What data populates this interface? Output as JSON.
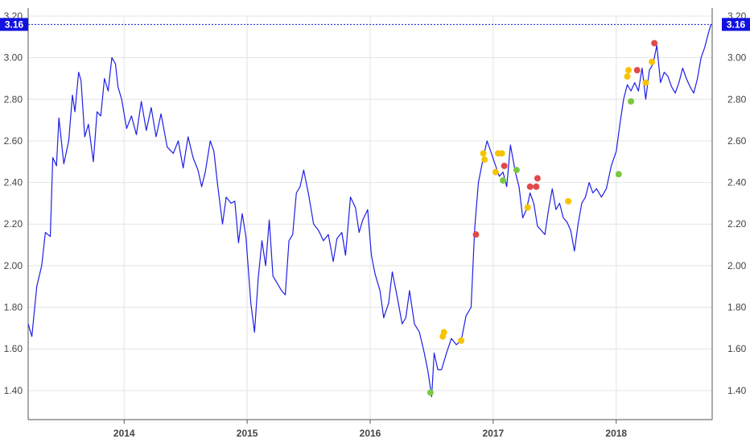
{
  "chart_data": {
    "type": "line",
    "title": "",
    "xlabel": "",
    "ylabel": "",
    "xlim": [
      2013.22,
      2018.78
    ],
    "ylim": [
      1.26,
      3.2
    ],
    "grid": true,
    "x_ticks": [
      {
        "value": 2014,
        "label": "2014"
      },
      {
        "value": 2015,
        "label": "2015"
      },
      {
        "value": 2016,
        "label": "2016"
      },
      {
        "value": 2017,
        "label": "2017"
      },
      {
        "value": 2018,
        "label": "2018"
      }
    ],
    "y_ticks": [
      {
        "value": 1.4,
        "label": "1.40"
      },
      {
        "value": 1.6,
        "label": "1.60"
      },
      {
        "value": 1.8,
        "label": "1.80"
      },
      {
        "value": 2.0,
        "label": "2.00"
      },
      {
        "value": 2.2,
        "label": "2.20"
      },
      {
        "value": 2.4,
        "label": "2.40"
      },
      {
        "value": 2.6,
        "label": "2.60"
      },
      {
        "value": 2.8,
        "label": "2.80"
      },
      {
        "value": 3.0,
        "label": "3.00"
      },
      {
        "value": 3.2,
        "label": "3.20"
      }
    ],
    "last_value": {
      "value": 3.16,
      "label": "3.16"
    },
    "colors": {
      "line": "#1f1fe6",
      "last_value_badge": "#1212e0",
      "grid": "#e4e4e4",
      "axis": "#555555",
      "green": "#7ac943",
      "yellow": "#f5c400",
      "red": "#e04a4a"
    },
    "series": [
      {
        "values": [
          [
            2013.22,
            1.72
          ],
          [
            2013.25,
            1.66
          ],
          [
            2013.29,
            1.9
          ],
          [
            2013.33,
            2.0
          ],
          [
            2013.36,
            2.16
          ],
          [
            2013.4,
            2.14
          ],
          [
            2013.42,
            2.52
          ],
          [
            2013.45,
            2.48
          ],
          [
            2013.47,
            2.71
          ],
          [
            2013.51,
            2.49
          ],
          [
            2013.55,
            2.6
          ],
          [
            2013.58,
            2.82
          ],
          [
            2013.6,
            2.74
          ],
          [
            2013.63,
            2.93
          ],
          [
            2013.65,
            2.89
          ],
          [
            2013.68,
            2.62
          ],
          [
            2013.71,
            2.68
          ],
          [
            2013.75,
            2.5
          ],
          [
            2013.78,
            2.74
          ],
          [
            2013.81,
            2.72
          ],
          [
            2013.84,
            2.9
          ],
          [
            2013.87,
            2.84
          ],
          [
            2013.9,
            3.0
          ],
          [
            2013.93,
            2.97
          ],
          [
            2013.95,
            2.86
          ],
          [
            2013.98,
            2.8
          ],
          [
            2014.02,
            2.66
          ],
          [
            2014.06,
            2.72
          ],
          [
            2014.1,
            2.63
          ],
          [
            2014.14,
            2.79
          ],
          [
            2014.18,
            2.65
          ],
          [
            2014.22,
            2.76
          ],
          [
            2014.26,
            2.62
          ],
          [
            2014.3,
            2.73
          ],
          [
            2014.35,
            2.57
          ],
          [
            2014.4,
            2.54
          ],
          [
            2014.44,
            2.6
          ],
          [
            2014.48,
            2.47
          ],
          [
            2014.52,
            2.62
          ],
          [
            2014.56,
            2.52
          ],
          [
            2014.6,
            2.46
          ],
          [
            2014.63,
            2.38
          ],
          [
            2014.66,
            2.45
          ],
          [
            2014.7,
            2.6
          ],
          [
            2014.73,
            2.55
          ],
          [
            2014.76,
            2.39
          ],
          [
            2014.8,
            2.2
          ],
          [
            2014.83,
            2.33
          ],
          [
            2014.87,
            2.3
          ],
          [
            2014.9,
            2.31
          ],
          [
            2014.93,
            2.11
          ],
          [
            2014.96,
            2.25
          ],
          [
            2014.99,
            2.14
          ],
          [
            2015.03,
            1.82
          ],
          [
            2015.06,
            1.68
          ],
          [
            2015.09,
            1.94
          ],
          [
            2015.12,
            2.12
          ],
          [
            2015.15,
            2.0
          ],
          [
            2015.18,
            2.22
          ],
          [
            2015.21,
            1.95
          ],
          [
            2015.25,
            1.91
          ],
          [
            2015.28,
            1.88
          ],
          [
            2015.31,
            1.86
          ],
          [
            2015.34,
            2.12
          ],
          [
            2015.37,
            2.15
          ],
          [
            2015.4,
            2.35
          ],
          [
            2015.43,
            2.38
          ],
          [
            2015.46,
            2.46
          ],
          [
            2015.5,
            2.34
          ],
          [
            2015.54,
            2.2
          ],
          [
            2015.58,
            2.17
          ],
          [
            2015.62,
            2.12
          ],
          [
            2015.66,
            2.15
          ],
          [
            2015.7,
            2.02
          ],
          [
            2015.73,
            2.13
          ],
          [
            2015.77,
            2.16
          ],
          [
            2015.8,
            2.05
          ],
          [
            2015.84,
            2.33
          ],
          [
            2015.88,
            2.28
          ],
          [
            2015.91,
            2.16
          ],
          [
            2015.94,
            2.22
          ],
          [
            2015.98,
            2.27
          ],
          [
            2016.01,
            2.05
          ],
          [
            2016.04,
            1.96
          ],
          [
            2016.08,
            1.88
          ],
          [
            2016.11,
            1.75
          ],
          [
            2016.15,
            1.82
          ],
          [
            2016.18,
            1.97
          ],
          [
            2016.22,
            1.85
          ],
          [
            2016.26,
            1.72
          ],
          [
            2016.29,
            1.75
          ],
          [
            2016.32,
            1.88
          ],
          [
            2016.36,
            1.72
          ],
          [
            2016.4,
            1.68
          ],
          [
            2016.44,
            1.58
          ],
          [
            2016.47,
            1.49
          ],
          [
            2016.5,
            1.37
          ],
          [
            2016.52,
            1.58
          ],
          [
            2016.55,
            1.5
          ],
          [
            2016.58,
            1.5
          ],
          [
            2016.62,
            1.58
          ],
          [
            2016.66,
            1.65
          ],
          [
            2016.7,
            1.62
          ],
          [
            2016.74,
            1.64
          ],
          [
            2016.78,
            1.76
          ],
          [
            2016.82,
            1.8
          ],
          [
            2016.85,
            2.18
          ],
          [
            2016.88,
            2.4
          ],
          [
            2016.92,
            2.52
          ],
          [
            2016.95,
            2.6
          ],
          [
            2016.98,
            2.55
          ],
          [
            2017.02,
            2.48
          ],
          [
            2017.05,
            2.43
          ],
          [
            2017.08,
            2.45
          ],
          [
            2017.11,
            2.38
          ],
          [
            2017.14,
            2.58
          ],
          [
            2017.18,
            2.45
          ],
          [
            2017.21,
            2.38
          ],
          [
            2017.24,
            2.23
          ],
          [
            2017.27,
            2.27
          ],
          [
            2017.3,
            2.35
          ],
          [
            2017.33,
            2.3
          ],
          [
            2017.36,
            2.19
          ],
          [
            2017.39,
            2.17
          ],
          [
            2017.42,
            2.15
          ],
          [
            2017.45,
            2.27
          ],
          [
            2017.48,
            2.37
          ],
          [
            2017.51,
            2.27
          ],
          [
            2017.54,
            2.3
          ],
          [
            2017.57,
            2.23
          ],
          [
            2017.6,
            2.21
          ],
          [
            2017.63,
            2.17
          ],
          [
            2017.66,
            2.07
          ],
          [
            2017.69,
            2.2
          ],
          [
            2017.72,
            2.3
          ],
          [
            2017.75,
            2.33
          ],
          [
            2017.78,
            2.4
          ],
          [
            2017.81,
            2.35
          ],
          [
            2017.84,
            2.37
          ],
          [
            2017.88,
            2.33
          ],
          [
            2017.92,
            2.37
          ],
          [
            2017.96,
            2.48
          ],
          [
            2018.0,
            2.55
          ],
          [
            2018.03,
            2.68
          ],
          [
            2018.06,
            2.8
          ],
          [
            2018.09,
            2.87
          ],
          [
            2018.12,
            2.84
          ],
          [
            2018.15,
            2.88
          ],
          [
            2018.18,
            2.84
          ],
          [
            2018.21,
            2.95
          ],
          [
            2018.24,
            2.8
          ],
          [
            2018.27,
            2.94
          ],
          [
            2018.3,
            2.97
          ],
          [
            2018.33,
            3.06
          ],
          [
            2018.36,
            2.88
          ],
          [
            2018.39,
            2.93
          ],
          [
            2018.42,
            2.91
          ],
          [
            2018.45,
            2.86
          ],
          [
            2018.48,
            2.83
          ],
          [
            2018.51,
            2.88
          ],
          [
            2018.54,
            2.95
          ],
          [
            2018.57,
            2.9
          ],
          [
            2018.6,
            2.86
          ],
          [
            2018.63,
            2.83
          ],
          [
            2018.66,
            2.9
          ],
          [
            2018.69,
            3.0
          ],
          [
            2018.72,
            3.05
          ],
          [
            2018.75,
            3.12
          ],
          [
            2018.77,
            3.16
          ]
        ]
      }
    ],
    "markers": [
      {
        "x": 2016.49,
        "y": 1.39,
        "color": "green"
      },
      {
        "x": 2016.59,
        "y": 1.66,
        "color": "yellow"
      },
      {
        "x": 2016.6,
        "y": 1.68,
        "color": "yellow"
      },
      {
        "x": 2016.74,
        "y": 1.64,
        "color": "yellow"
      },
      {
        "x": 2016.86,
        "y": 2.15,
        "color": "red"
      },
      {
        "x": 2016.92,
        "y": 2.54,
        "color": "yellow"
      },
      {
        "x": 2016.93,
        "y": 2.51,
        "color": "yellow"
      },
      {
        "x": 2017.02,
        "y": 2.45,
        "color": "yellow"
      },
      {
        "x": 2017.04,
        "y": 2.54,
        "color": "yellow"
      },
      {
        "x": 2017.07,
        "y": 2.54,
        "color": "yellow"
      },
      {
        "x": 2017.08,
        "y": 2.41,
        "color": "green"
      },
      {
        "x": 2017.09,
        "y": 2.48,
        "color": "red"
      },
      {
        "x": 2017.19,
        "y": 2.46,
        "color": "green"
      },
      {
        "x": 2017.28,
        "y": 2.28,
        "color": "yellow"
      },
      {
        "x": 2017.3,
        "y": 2.38,
        "color": "red"
      },
      {
        "x": 2017.35,
        "y": 2.38,
        "color": "red"
      },
      {
        "x": 2017.36,
        "y": 2.42,
        "color": "red"
      },
      {
        "x": 2017.61,
        "y": 2.31,
        "color": "yellow"
      },
      {
        "x": 2018.02,
        "y": 2.44,
        "color": "green"
      },
      {
        "x": 2018.09,
        "y": 2.91,
        "color": "yellow"
      },
      {
        "x": 2018.1,
        "y": 2.94,
        "color": "yellow"
      },
      {
        "x": 2018.12,
        "y": 2.79,
        "color": "green"
      },
      {
        "x": 2018.17,
        "y": 2.94,
        "color": "red"
      },
      {
        "x": 2018.24,
        "y": 2.88,
        "color": "yellow"
      },
      {
        "x": 2018.29,
        "y": 2.98,
        "color": "yellow"
      },
      {
        "x": 2018.31,
        "y": 3.07,
        "color": "red"
      }
    ]
  }
}
